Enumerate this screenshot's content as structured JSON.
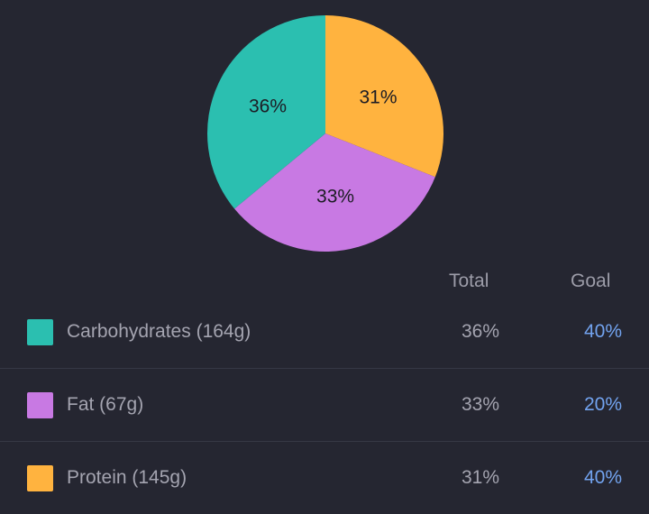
{
  "colors": {
    "background": "#252631",
    "carbohydrates": "#2bbfb0",
    "fat": "#c879e3",
    "protein": "#ffb33f",
    "goal_text": "#72a3ef"
  },
  "chart_data": {
    "type": "pie",
    "slices": [
      {
        "name": "Protein",
        "value": 31,
        "label": "31%",
        "color": "#ffb33f"
      },
      {
        "name": "Fat",
        "value": 33,
        "label": "33%",
        "color": "#c879e3"
      },
      {
        "name": "Carbohydrates",
        "value": 36,
        "label": "36%",
        "color": "#2bbfb0"
      }
    ],
    "start": "top",
    "direction": "clockwise"
  },
  "table": {
    "headers": {
      "total": "Total",
      "goal": "Goal"
    },
    "rows": [
      {
        "label": "Carbohydrates (164g)",
        "total": "36%",
        "goal": "40%",
        "color": "#2bbfb0"
      },
      {
        "label": "Fat (67g)",
        "total": "33%",
        "goal": "20%",
        "color": "#c879e3"
      },
      {
        "label": "Protein (145g)",
        "total": "31%",
        "goal": "40%",
        "color": "#ffb33f"
      }
    ]
  }
}
